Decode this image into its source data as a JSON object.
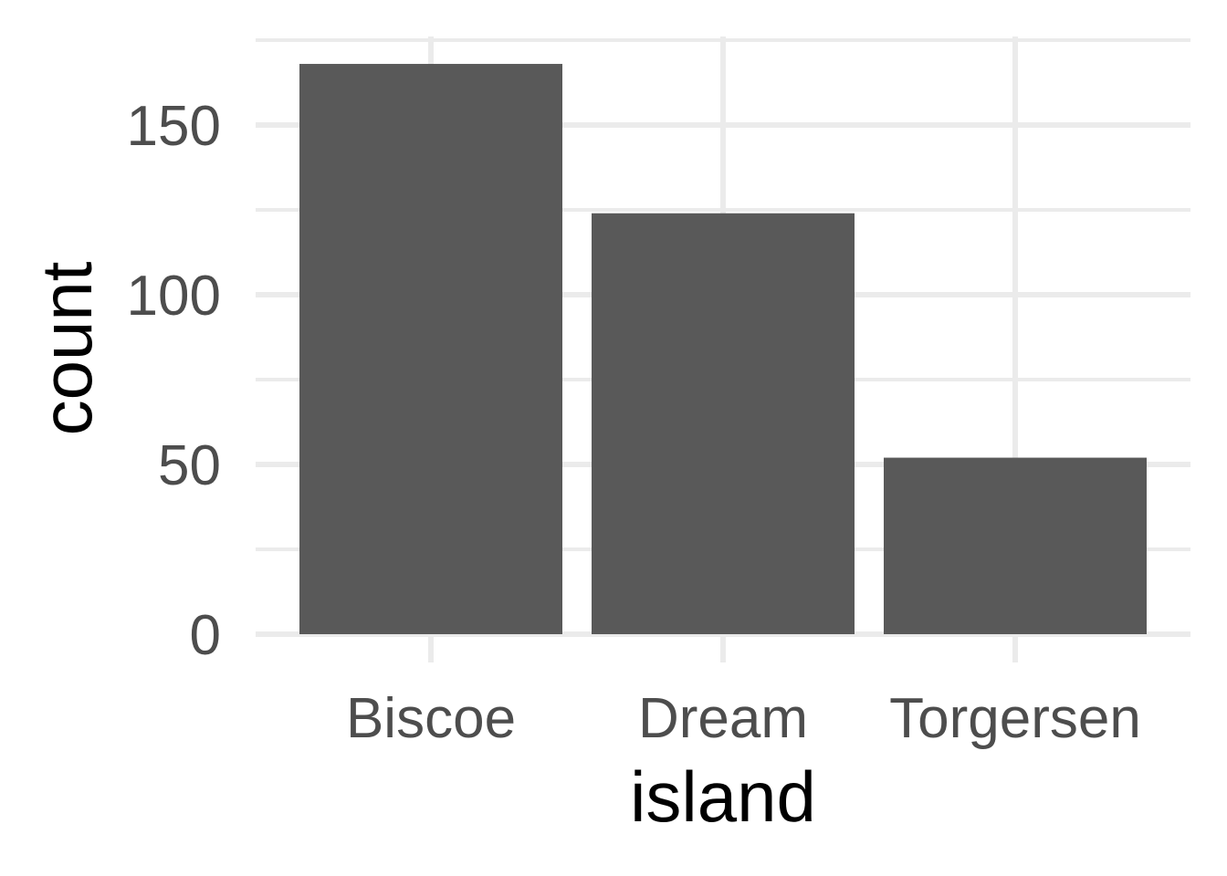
{
  "chart_data": {
    "type": "bar",
    "title": "",
    "xlabel": "island",
    "ylabel": "count",
    "categories": [
      "Biscoe",
      "Dream",
      "Torgersen"
    ],
    "values": [
      168,
      124,
      52
    ],
    "ylim": [
      0,
      168
    ],
    "yticks": [
      0,
      50,
      100,
      150
    ],
    "ytick_labels": [
      "0",
      "50",
      "100",
      "150"
    ],
    "grid": true,
    "legend": "none",
    "bar_color": "#595959",
    "grid_color": "#ebebeb"
  }
}
